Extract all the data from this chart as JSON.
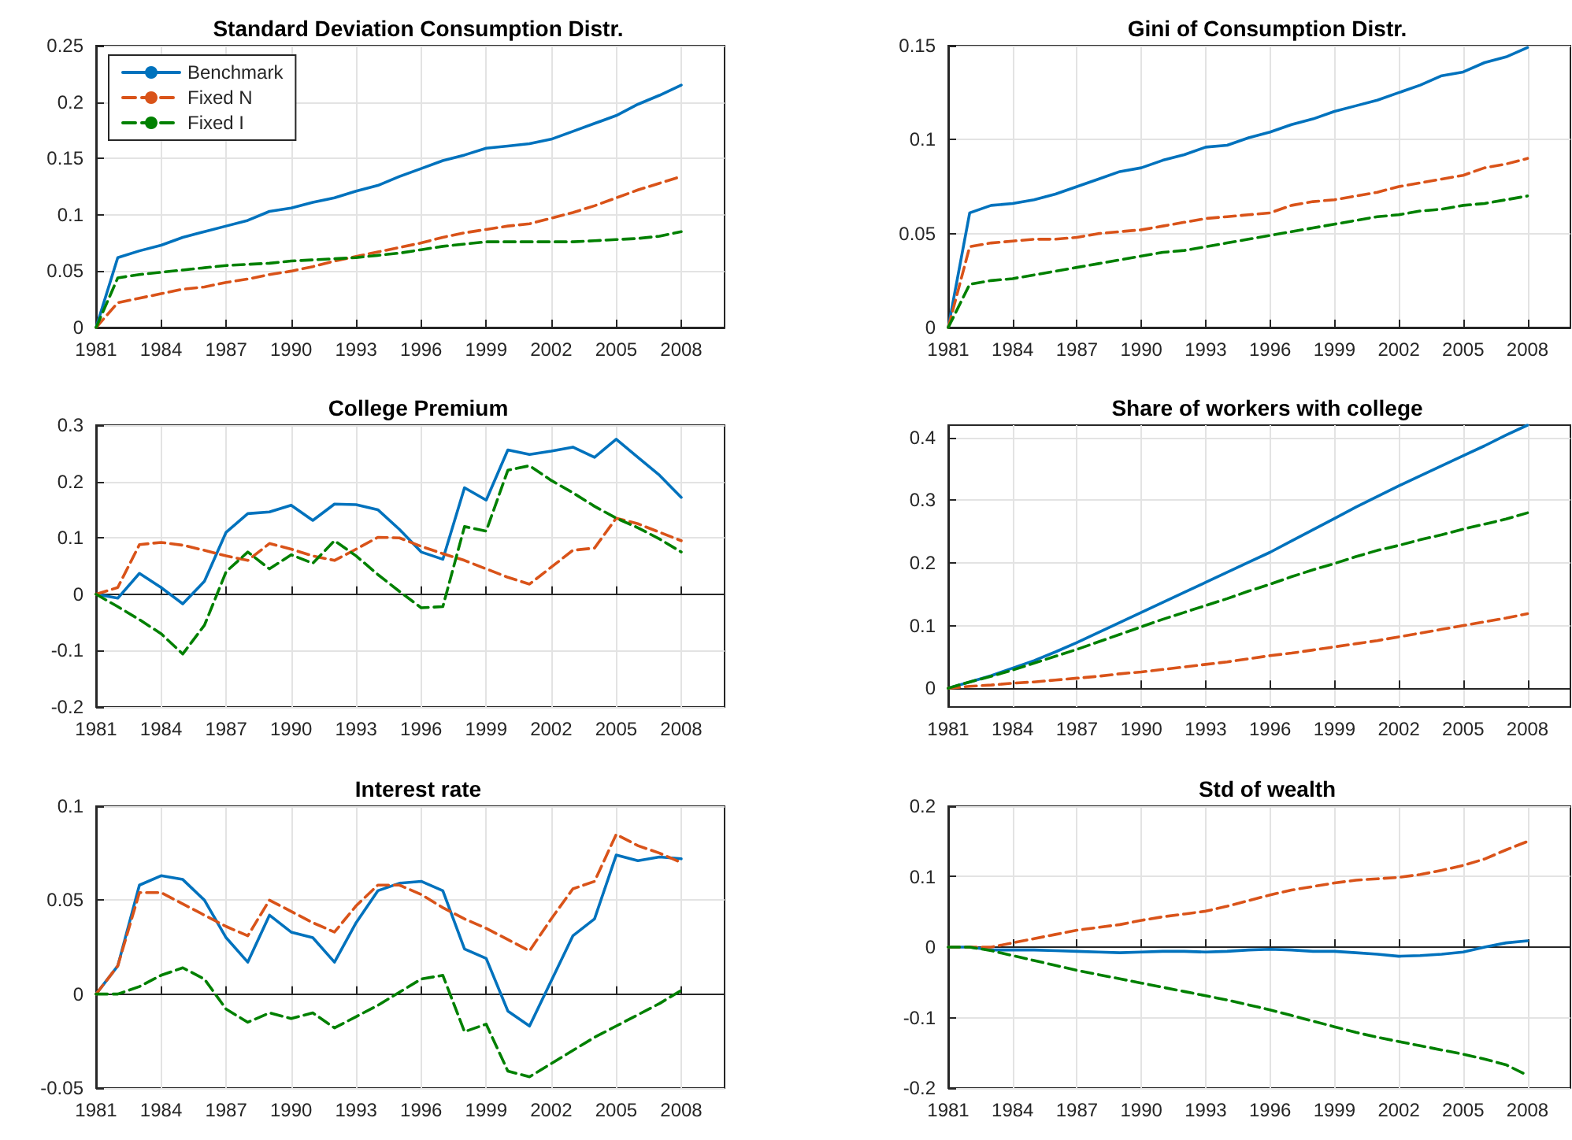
{
  "chart_data": [
    {
      "type": "line",
      "title": "Standard Deviation Consumption Distr.",
      "x": [
        1981,
        1982,
        1983,
        1984,
        1985,
        1986,
        1987,
        1988,
        1989,
        1990,
        1991,
        1992,
        1993,
        1994,
        1995,
        1996,
        1997,
        1998,
        1999,
        2000,
        2001,
        2002,
        2003,
        2004,
        2005,
        2006,
        2007,
        2008
      ],
      "xlim": [
        1981,
        2010
      ],
      "xticks": [
        1981,
        1984,
        1987,
        1990,
        1993,
        1996,
        1999,
        2002,
        2005,
        2008
      ],
      "ylim": [
        0,
        0.25
      ],
      "yticks": [
        0,
        0.05,
        0.1,
        0.15,
        0.2,
        0.25
      ],
      "grid": true,
      "legend": "top left",
      "series": [
        {
          "name": "Benchmark",
          "color": "#0072bd",
          "line_style": "solid",
          "values": [
            0,
            0.062,
            0.068,
            0.073,
            0.08,
            0.085,
            0.09,
            0.095,
            0.103,
            0.106,
            0.111,
            0.115,
            0.121,
            0.126,
            0.134,
            0.141,
            0.148,
            0.153,
            0.159,
            0.161,
            0.163,
            0.167,
            0.174,
            0.181,
            0.188,
            0.198,
            0.206,
            0.215
          ]
        },
        {
          "name": "Fixed N",
          "color": "#d95319",
          "line_style": "dashed",
          "values": [
            0,
            0.022,
            0.026,
            0.03,
            0.034,
            0.036,
            0.04,
            0.043,
            0.047,
            0.05,
            0.054,
            0.059,
            0.063,
            0.067,
            0.071,
            0.075,
            0.08,
            0.084,
            0.087,
            0.09,
            0.092,
            0.097,
            0.102,
            0.108,
            0.115,
            0.122,
            0.128,
            0.134
          ]
        },
        {
          "name": "Fixed I",
          "color": "#008000",
          "line_style": "dashed",
          "values": [
            0,
            0.044,
            0.047,
            0.049,
            0.051,
            0.053,
            0.055,
            0.056,
            0.057,
            0.059,
            0.06,
            0.061,
            0.062,
            0.064,
            0.066,
            0.069,
            0.072,
            0.074,
            0.076,
            0.076,
            0.076,
            0.076,
            0.076,
            0.077,
            0.078,
            0.079,
            0.081,
            0.085
          ]
        }
      ]
    },
    {
      "type": "line",
      "title": "Gini of Consumption Distr.",
      "x": [
        1981,
        1982,
        1983,
        1984,
        1985,
        1986,
        1987,
        1988,
        1989,
        1990,
        1991,
        1992,
        1993,
        1994,
        1995,
        1996,
        1997,
        1998,
        1999,
        2000,
        2001,
        2002,
        2003,
        2004,
        2005,
        2006,
        2007,
        2008
      ],
      "xlim": [
        1981,
        2010
      ],
      "xticks": [
        1981,
        1984,
        1987,
        1990,
        1993,
        1996,
        1999,
        2002,
        2005,
        2008
      ],
      "ylim": [
        0,
        0.15
      ],
      "yticks": [
        0,
        0.05,
        0.1,
        0.15
      ],
      "grid": true,
      "series": [
        {
          "color": "#0072bd",
          "line_style": "solid",
          "values": [
            0,
            0.061,
            0.065,
            0.066,
            0.068,
            0.071,
            0.075,
            0.079,
            0.083,
            0.085,
            0.089,
            0.092,
            0.096,
            0.097,
            0.101,
            0.104,
            0.108,
            0.111,
            0.115,
            0.118,
            0.121,
            0.125,
            0.129,
            0.134,
            0.136,
            0.141,
            0.144,
            0.149
          ]
        },
        {
          "color": "#d95319",
          "line_style": "dashed",
          "values": [
            0,
            0.043,
            0.045,
            0.046,
            0.047,
            0.047,
            0.048,
            0.05,
            0.051,
            0.052,
            0.054,
            0.056,
            0.058,
            0.059,
            0.06,
            0.061,
            0.065,
            0.067,
            0.068,
            0.07,
            0.072,
            0.075,
            0.077,
            0.079,
            0.081,
            0.085,
            0.087,
            0.09
          ]
        },
        {
          "color": "#008000",
          "line_style": "dashed",
          "values": [
            0,
            0.023,
            0.025,
            0.026,
            0.028,
            0.03,
            0.032,
            0.034,
            0.036,
            0.038,
            0.04,
            0.041,
            0.043,
            0.045,
            0.047,
            0.049,
            0.051,
            0.053,
            0.055,
            0.057,
            0.059,
            0.06,
            0.062,
            0.063,
            0.065,
            0.066,
            0.068,
            0.07
          ]
        }
      ]
    },
    {
      "type": "line",
      "title": "College Premium",
      "x": [
        1981,
        1982,
        1983,
        1984,
        1985,
        1986,
        1987,
        1988,
        1989,
        1990,
        1991,
        1992,
        1993,
        1994,
        1995,
        1996,
        1997,
        1998,
        1999,
        2000,
        2001,
        2002,
        2003,
        2004,
        2005,
        2006,
        2007,
        2008
      ],
      "xlim": [
        1981,
        2010
      ],
      "xticks": [
        1981,
        1984,
        1987,
        1990,
        1993,
        1996,
        1999,
        2002,
        2005,
        2008
      ],
      "ylim": [
        -0.2,
        0.3
      ],
      "yticks": [
        -0.2,
        -0.1,
        0,
        0.1,
        0.2,
        0.3
      ],
      "grid": true,
      "series": [
        {
          "color": "#0072bd",
          "line_style": "solid",
          "values": [
            0,
            -0.007,
            0.037,
            0.012,
            -0.017,
            0.023,
            0.11,
            0.143,
            0.146,
            0.158,
            0.131,
            0.16,
            0.159,
            0.15,
            0.115,
            0.075,
            0.062,
            0.189,
            0.167,
            0.256,
            0.248,
            0.254,
            0.261,
            0.243,
            0.275,
            0.243,
            0.211,
            0.172
          ]
        },
        {
          "color": "#d95319",
          "line_style": "dashed",
          "values": [
            0,
            0.012,
            0.088,
            0.092,
            0.087,
            0.078,
            0.068,
            0.06,
            0.09,
            0.08,
            0.068,
            0.06,
            0.08,
            0.101,
            0.1,
            0.085,
            0.072,
            0.06,
            0.045,
            0.03,
            0.018,
            0.048,
            0.078,
            0.082,
            0.135,
            0.125,
            0.11,
            0.095
          ]
        },
        {
          "color": "#008000",
          "line_style": "dashed",
          "values": [
            0,
            -0.022,
            -0.045,
            -0.07,
            -0.106,
            -0.055,
            0.04,
            0.075,
            0.045,
            0.07,
            0.055,
            0.095,
            0.068,
            0.035,
            0.005,
            -0.024,
            -0.022,
            0.12,
            0.112,
            0.22,
            0.228,
            0.202,
            0.18,
            0.156,
            0.135,
            0.118,
            0.098,
            0.075
          ]
        }
      ]
    },
    {
      "type": "line",
      "title": "Share of workers with college",
      "x": [
        1981,
        1982,
        1983,
        1984,
        1985,
        1986,
        1987,
        1988,
        1989,
        1990,
        1991,
        1992,
        1993,
        1994,
        1995,
        1996,
        1997,
        1998,
        1999,
        2000,
        2001,
        2002,
        2003,
        2004,
        2005,
        2006,
        2007,
        2008
      ],
      "xlim": [
        1981,
        2010
      ],
      "xticks": [
        1981,
        1984,
        1987,
        1990,
        1993,
        1996,
        1999,
        2002,
        2005,
        2008
      ],
      "ylim": [
        -0.03,
        0.42
      ],
      "yticks": [
        0,
        0.1,
        0.2,
        0.3,
        0.4
      ],
      "grid": true,
      "series": [
        {
          "color": "#0072bd",
          "line_style": "solid",
          "values": [
            0,
            0.01,
            0.02,
            0.032,
            0.044,
            0.058,
            0.073,
            0.089,
            0.105,
            0.121,
            0.137,
            0.153,
            0.169,
            0.185,
            0.201,
            0.217,
            0.235,
            0.253,
            0.271,
            0.289,
            0.306,
            0.323,
            0.339,
            0.355,
            0.371,
            0.387,
            0.404,
            0.42
          ]
        },
        {
          "color": "#d95319",
          "line_style": "dashed",
          "values": [
            0,
            0.003,
            0.005,
            0.008,
            0.01,
            0.013,
            0.016,
            0.019,
            0.023,
            0.026,
            0.03,
            0.034,
            0.038,
            0.042,
            0.047,
            0.052,
            0.056,
            0.061,
            0.066,
            0.071,
            0.076,
            0.082,
            0.088,
            0.094,
            0.1,
            0.106,
            0.112,
            0.119
          ]
        },
        {
          "color": "#008000",
          "line_style": "dashed",
          "values": [
            0,
            0.01,
            0.019,
            0.029,
            0.04,
            0.051,
            0.062,
            0.074,
            0.086,
            0.098,
            0.11,
            0.121,
            0.132,
            0.143,
            0.155,
            0.166,
            0.178,
            0.189,
            0.199,
            0.21,
            0.22,
            0.228,
            0.237,
            0.245,
            0.254,
            0.262,
            0.27,
            0.28
          ]
        }
      ]
    },
    {
      "type": "line",
      "title": "Interest rate",
      "x": [
        1981,
        1982,
        1983,
        1984,
        1985,
        1986,
        1987,
        1988,
        1989,
        1990,
        1991,
        1992,
        1993,
        1994,
        1995,
        1996,
        1997,
        1998,
        1999,
        2000,
        2001,
        2002,
        2003,
        2004,
        2005,
        2006,
        2007,
        2008
      ],
      "xlim": [
        1981,
        2010
      ],
      "xticks": [
        1981,
        1984,
        1987,
        1990,
        1993,
        1996,
        1999,
        2002,
        2005,
        2008
      ],
      "ylim": [
        -0.05,
        0.1
      ],
      "yticks": [
        -0.05,
        0,
        0.05,
        0.1
      ],
      "grid": true,
      "series": [
        {
          "color": "#0072bd",
          "line_style": "solid",
          "values": [
            0,
            0.015,
            0.058,
            0.063,
            0.061,
            0.05,
            0.03,
            0.017,
            0.042,
            0.033,
            0.03,
            0.017,
            0.038,
            0.055,
            0.059,
            0.06,
            0.055,
            0.024,
            0.019,
            -0.009,
            -0.017,
            0.007,
            0.031,
            0.04,
            0.074,
            0.071,
            0.073,
            0.072
          ]
        },
        {
          "color": "#d95319",
          "line_style": "dashed",
          "values": [
            0,
            0.015,
            0.054,
            0.054,
            0.048,
            0.042,
            0.036,
            0.031,
            0.05,
            0.044,
            0.038,
            0.033,
            0.047,
            0.058,
            0.058,
            0.053,
            0.046,
            0.04,
            0.035,
            0.029,
            0.023,
            0.04,
            0.056,
            0.06,
            0.085,
            0.079,
            0.075,
            0.07
          ]
        },
        {
          "color": "#008000",
          "line_style": "dashed",
          "values": [
            0,
            0,
            0.004,
            0.01,
            0.014,
            0.008,
            -0.008,
            -0.015,
            -0.01,
            -0.013,
            -0.01,
            -0.018,
            -0.012,
            -0.006,
            0.001,
            0.008,
            0.01,
            -0.02,
            -0.016,
            -0.041,
            -0.044,
            -0.037,
            -0.03,
            -0.023,
            -0.017,
            -0.011,
            -0.005,
            0.002
          ]
        }
      ]
    },
    {
      "type": "line",
      "title": "Std of wealth",
      "x": [
        1981,
        1982,
        1983,
        1984,
        1985,
        1986,
        1987,
        1988,
        1989,
        1990,
        1991,
        1992,
        1993,
        1994,
        1995,
        1996,
        1997,
        1998,
        1999,
        2000,
        2001,
        2002,
        2003,
        2004,
        2005,
        2006,
        2007,
        2008
      ],
      "xlim": [
        1981,
        2010
      ],
      "xticks": [
        1981,
        1984,
        1987,
        1990,
        1993,
        1996,
        1999,
        2002,
        2005,
        2008
      ],
      "ylim": [
        -0.2,
        0.2
      ],
      "yticks": [
        -0.2,
        -0.1,
        0,
        0.1,
        0.2
      ],
      "grid": true,
      "series": [
        {
          "color": "#0072bd",
          "line_style": "solid",
          "values": [
            0,
            0,
            -0.004,
            -0.004,
            -0.004,
            -0.005,
            -0.006,
            -0.007,
            -0.008,
            -0.007,
            -0.006,
            -0.006,
            -0.007,
            -0.006,
            -0.004,
            -0.003,
            -0.004,
            -0.006,
            -0.006,
            -0.008,
            -0.01,
            -0.013,
            -0.012,
            -0.01,
            -0.007,
            0,
            0.006,
            0.009
          ]
        },
        {
          "color": "#d95319",
          "line_style": "dashed",
          "values": [
            0,
            0,
            0,
            0.006,
            0.012,
            0.018,
            0.024,
            0.028,
            0.032,
            0.038,
            0.043,
            0.047,
            0.051,
            0.058,
            0.066,
            0.074,
            0.081,
            0.086,
            0.091,
            0.095,
            0.097,
            0.099,
            0.103,
            0.109,
            0.116,
            0.125,
            0.138,
            0.15
          ]
        },
        {
          "color": "#008000",
          "line_style": "dashed",
          "values": [
            0,
            0,
            -0.005,
            -0.012,
            -0.019,
            -0.026,
            -0.033,
            -0.039,
            -0.045,
            -0.051,
            -0.057,
            -0.063,
            -0.069,
            -0.075,
            -0.082,
            -0.089,
            -0.097,
            -0.105,
            -0.113,
            -0.121,
            -0.128,
            -0.134,
            -0.14,
            -0.146,
            -0.152,
            -0.159,
            -0.167,
            -0.182
          ]
        }
      ]
    }
  ]
}
